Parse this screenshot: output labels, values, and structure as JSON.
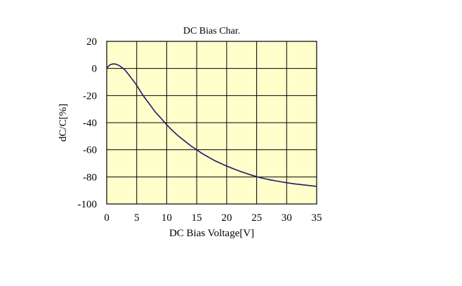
{
  "chart_data": {
    "type": "line",
    "title": "DC Bias Char.",
    "xlabel": "DC Bias Voltage[V]",
    "ylabel": "dC/C[%]",
    "xlim": [
      0,
      35
    ],
    "ylim": [
      -100,
      20
    ],
    "x_ticks": [
      0,
      5,
      10,
      15,
      20,
      25,
      30,
      35
    ],
    "y_ticks": [
      20,
      0,
      -20,
      -40,
      -60,
      -80,
      -100
    ],
    "grid": true,
    "colors": {
      "plot_background": "#ffffcc",
      "grid": "#000000",
      "line": "#1a1a66"
    },
    "series": [
      {
        "x": [
          0,
          0.5,
          1,
          1.5,
          2,
          2.5,
          3,
          4,
          5,
          6,
          7,
          8,
          9,
          10,
          11,
          12,
          13,
          14,
          15,
          16,
          17,
          18,
          19,
          20,
          22,
          24,
          25,
          26,
          28,
          30,
          32,
          34,
          35
        ],
        "y": [
          0,
          2.5,
          3.3,
          3.2,
          2.3,
          0.8,
          -1.0,
          -6.5,
          -12.5,
          -19.5,
          -25.5,
          -31.5,
          -36.5,
          -41.5,
          -46.0,
          -50.0,
          -53.5,
          -57.0,
          -60.0,
          -63.0,
          -65.5,
          -68.0,
          -70.0,
          -72.0,
          -75.5,
          -78.5,
          -79.8,
          -81.0,
          -82.8,
          -84.3,
          -85.5,
          -86.5,
          -87.0
        ]
      }
    ]
  }
}
